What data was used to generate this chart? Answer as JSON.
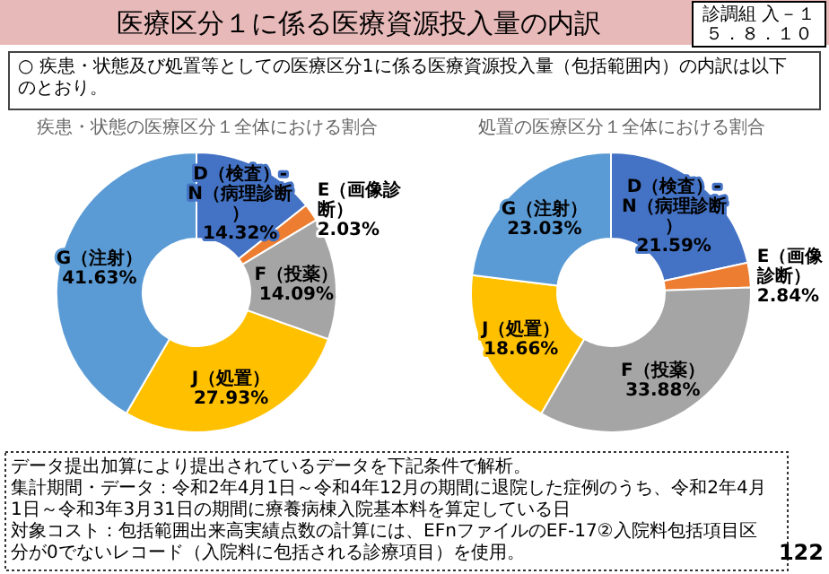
{
  "chart_data": [
    {
      "type": "other",
      "title": "医療区分１に係る医療資源投入量の内訳",
      "subtitle": "○ 疾患・状態及び処置等としての医療区分1に係る医療資源投入量（包括範囲内）の内訳は以下のとおり。",
      "annotations": [
        "診調組 入－１",
        "５．８．１０"
      ]
    },
    {
      "type": "donut",
      "title": "疾患・状態の医療区分１全体における割合",
      "categories": [
        "D（検査）-N（病理診断）",
        "E（画像診断）",
        "F（投薬）",
        "J（処置）",
        "G（注射）"
      ],
      "values": [
        14.32,
        2.03,
        14.09,
        27.93,
        41.63
      ],
      "value_labels": [
        "14.32%",
        "2.03%",
        "14.09%",
        "27.93%",
        "41.63%"
      ],
      "colors": [
        "#4472c4",
        "#ed7d31",
        "#a5a5a5",
        "#ffc000",
        "#5b9bd5"
      ],
      "legend": false
    },
    {
      "type": "donut",
      "title": "処置の医療区分１全体における割合",
      "categories": [
        "D（検査）-N（病理診断）",
        "E（画像診断）",
        "F（投薬）",
        "J（処置）",
        "G（注射）"
      ],
      "values": [
        21.59,
        2.84,
        33.88,
        18.66,
        23.03
      ],
      "value_labels": [
        "21.59%",
        "2.84%",
        "33.88%",
        "18.66%",
        "23.03%"
      ],
      "colors": [
        "#4472c4",
        "#ed7d31",
        "#a5a5a5",
        "#ffc000",
        "#5b9bd5"
      ],
      "legend": false
    },
    {
      "type": "other",
      "annotations": [
        "データ提出加算により提出されているデータを下記条件で解析。",
        "集計期間・データ：令和2年4月1日～令和4年12月の期間に退院した症例のうち、令和2年4月1日～令和3年3月31日の期間に療養病棟入院基本料を算定している日",
        "対象コスト：包括範囲出来高実績点数の計算には、EFnファイルのEF-17②入院料包括項目区分が0でないレコード（入院料に包括される診療項目）を使用。",
        "122"
      ]
    }
  ]
}
